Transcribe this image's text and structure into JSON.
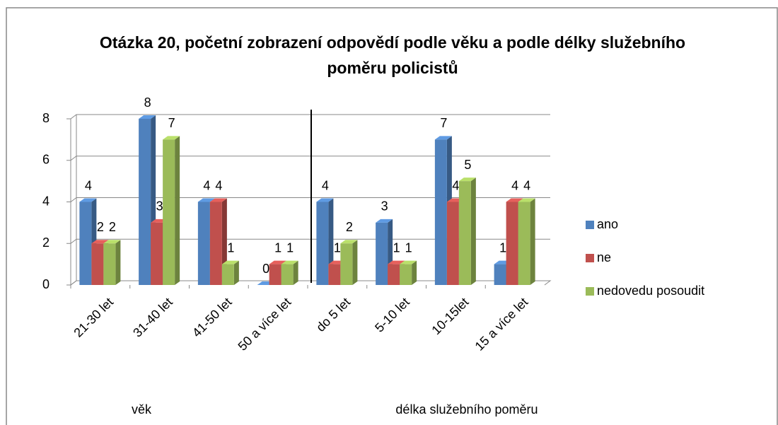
{
  "chart_data": {
    "type": "bar3d",
    "title": "Otázka 20, početní zobrazení odpovědí podle věku a podle délky služebního poměru policistů",
    "categories": [
      "21-30 let",
      "31-40 let",
      "41-50 let",
      "50 a více let",
      "do 5 let",
      "5-10 let",
      "10-15let",
      "15 a více let"
    ],
    "series": [
      {
        "name": "ano",
        "color": "#4f81bd",
        "values": [
          4,
          8,
          4,
          0,
          4,
          3,
          7,
          1
        ]
      },
      {
        "name": "ne",
        "color": "#c0504d",
        "values": [
          2,
          3,
          4,
          1,
          1,
          1,
          4,
          4
        ]
      },
      {
        "name": "nedovedu posoudit",
        "color": "#9bbb59",
        "values": [
          2,
          7,
          1,
          1,
          2,
          1,
          5,
          4
        ]
      }
    ],
    "ylim": [
      0,
      8
    ],
    "yticks": [
      0,
      2,
      4,
      6,
      8
    ],
    "grid": true,
    "legend": "right",
    "annotations": [
      "věk",
      "délka služebního poměru"
    ]
  }
}
